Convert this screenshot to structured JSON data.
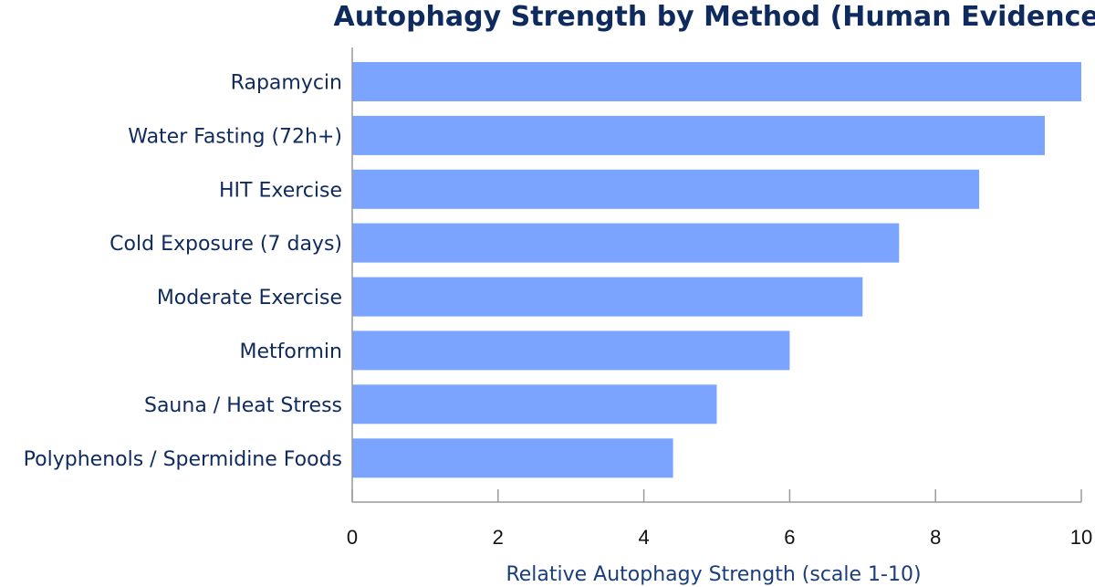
{
  "colors": {
    "bar": "#7aa4ff",
    "title": "#0f2a5c",
    "label": "#0f2a5c",
    "axis_title": "#1a3d7c",
    "axis_line": "#9a9a9a"
  },
  "chart_data": {
    "type": "bar",
    "orientation": "horizontal",
    "title": "Autophagy Strength by Method (Human Evidence)",
    "xlabel": "Relative Autophagy Strength (scale 1-10)",
    "ylabel": "",
    "xlim": [
      0,
      10
    ],
    "xticks": [
      "0",
      "2",
      "4",
      "6",
      "8",
      "10"
    ],
    "grid": false,
    "categories": [
      "Rapamycin",
      "Water Fasting (72h+)",
      "HIT Exercise",
      "Cold Exposure (7 days)",
      "Moderate Exercise",
      "Metformin",
      "Sauna / Heat Stress",
      "Polyphenols / Spermidine Foods"
    ],
    "values": [
      10,
      9.5,
      8.6,
      7.5,
      7.0,
      6.0,
      5.0,
      4.4
    ]
  }
}
